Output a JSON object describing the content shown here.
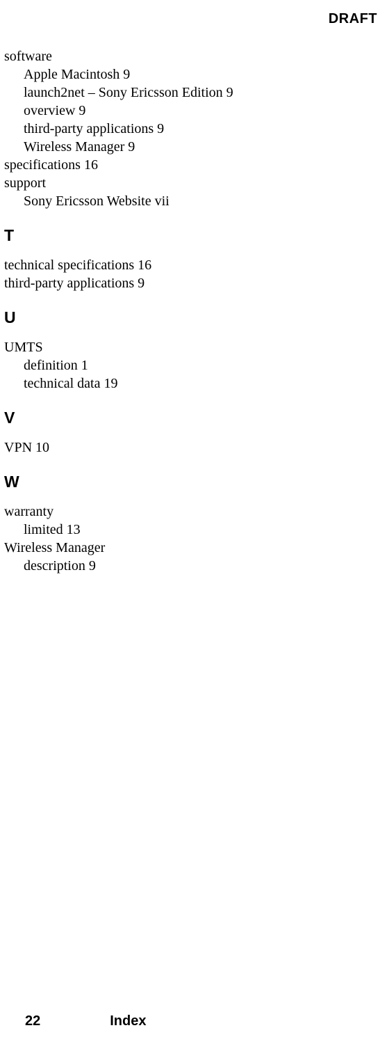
{
  "header": {
    "draft": "DRAFT"
  },
  "footer": {
    "page": "22",
    "title": "Index"
  },
  "sections": {
    "continuation": {
      "software": {
        "label": "software",
        "items": [
          "Apple Macintosh 9",
          "launch2net – Sony Ericsson Edition 9",
          "overview 9",
          "third-party applications 9",
          "Wireless Manager 9"
        ]
      },
      "specifications": "specifications 16",
      "support": {
        "label": "support",
        "items": [
          "Sony Ericsson Website vii"
        ]
      }
    },
    "T": {
      "letter": "T",
      "entries": [
        "technical specifications 16",
        "third-party applications 9"
      ]
    },
    "U": {
      "letter": "U",
      "umts": {
        "label": "UMTS",
        "items": [
          "definition 1",
          "technical data 19"
        ]
      }
    },
    "V": {
      "letter": "V",
      "entries": [
        "VPN 10"
      ]
    },
    "W": {
      "letter": "W",
      "warranty": {
        "label": "warranty",
        "items": [
          "limited 13"
        ]
      },
      "wireless": {
        "label": "Wireless Manager",
        "items": [
          "description 9"
        ]
      }
    }
  }
}
